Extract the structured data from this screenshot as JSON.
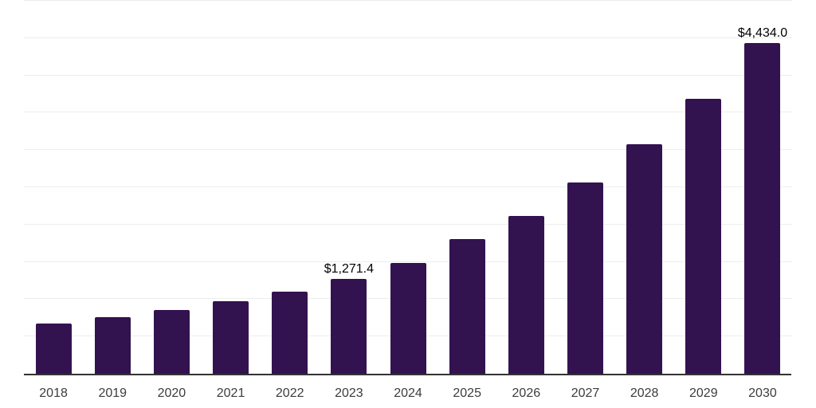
{
  "chart_data": {
    "type": "bar",
    "title": "",
    "xlabel": "",
    "ylabel": "",
    "categories": [
      "2018",
      "2019",
      "2020",
      "2021",
      "2022",
      "2023",
      "2024",
      "2025",
      "2026",
      "2027",
      "2028",
      "2029",
      "2030"
    ],
    "values": [
      675,
      760,
      855,
      970,
      1100,
      1271.4,
      1485,
      1805,
      2115,
      2565,
      3075,
      3685,
      4434.0
    ],
    "value_labels": [
      "",
      "",
      "",
      "",
      "",
      "$1,271.4",
      "",
      "",
      "",
      "",
      "",
      "",
      "$4,434.0"
    ],
    "ylim": [
      0,
      5000
    ],
    "gridline_step": 500,
    "grid": true,
    "legend": "none",
    "colors": {
      "bar": "#331250",
      "gridline": "#ededed",
      "axis": "#333333",
      "value_label": "#000000",
      "tick_label": "#3c3c3c",
      "background": "#ffffff"
    }
  }
}
